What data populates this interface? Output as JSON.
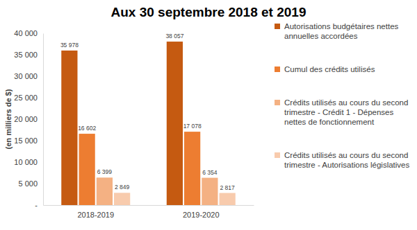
{
  "chart_data": {
    "type": "bar",
    "title": "Aux 30 septembre 2018 et 2019",
    "y_label": "(en milliers de $)",
    "categories": [
      "2018-2019",
      "2019-2020"
    ],
    "series": [
      {
        "name": "Autorisations budgétaires nettes annuelles accordées",
        "color": "#c55a11",
        "values": [
          35978,
          38057
        ],
        "value_labels": [
          "35 978",
          "38 057"
        ]
      },
      {
        "name": "Cumul des crédits utilisés",
        "color": "#ed7d31",
        "values": [
          16602,
          17078
        ],
        "value_labels": [
          "16 602",
          "17 078"
        ]
      },
      {
        "name": "Crédits utilisés au cours du second trimestre - Crédit 1 - Dépenses nettes de fonctionnement",
        "color": "#f4b183",
        "values": [
          6399,
          6354
        ],
        "value_labels": [
          "6 399",
          "6 354"
        ]
      },
      {
        "name": "Crédits utilisés au cours du second trimestre - Autorisations législatives",
        "color": "#f8cbad",
        "values": [
          2849,
          2817
        ],
        "value_labels": [
          "2 849",
          "2 817"
        ]
      }
    ],
    "ylim": [
      0,
      40000
    ],
    "yticks": [
      {
        "value": 0,
        "label": "-"
      },
      {
        "value": 5000,
        "label": "5 000"
      },
      {
        "value": 10000,
        "label": "10 000"
      },
      {
        "value": 15000,
        "label": "15 000"
      },
      {
        "value": 20000,
        "label": "20 000"
      },
      {
        "value": 25000,
        "label": "25 000"
      },
      {
        "value": 30000,
        "label": "30 000"
      },
      {
        "value": 35000,
        "label": "35 000"
      },
      {
        "value": 40000,
        "label": "40 000"
      }
    ],
    "grid": false,
    "legend": "right",
    "data_labels": true
  }
}
